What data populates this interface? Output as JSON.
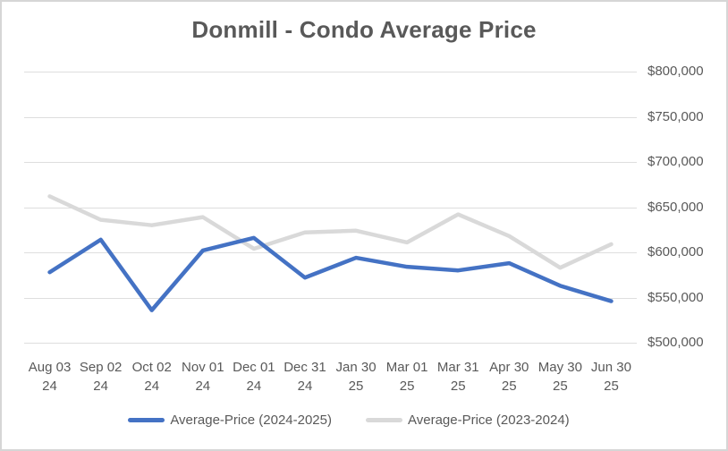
{
  "chart": {
    "background": "#FFFFFF",
    "border_color": "#D6D6D6",
    "text_color": "#595959",
    "gridline_color": "#DEDEDE"
  },
  "chart_data": {
    "type": "line",
    "title": "Donmill - Condo Average Price",
    "categories": [
      "Aug 03",
      "Sep 02",
      "Oct 02",
      "Nov 01",
      "Dec 01",
      "Dec 31",
      "Jan 30",
      "Mar 01",
      "Mar 31",
      "Apr 30",
      "May 30",
      "Jun 30"
    ],
    "category_years": [
      "24",
      "24",
      "24",
      "24",
      "24",
      "24",
      "25",
      "25",
      "25",
      "25",
      "25",
      "25"
    ],
    "series": [
      {
        "name": "Average-Price (2024-2025)",
        "color": "#4472C4",
        "values": [
          578000,
          614000,
          536000,
          602000,
          616000,
          572000,
          594000,
          584000,
          580000,
          588000,
          563000,
          546000
        ]
      },
      {
        "name": "Average-Price (2023-2024)",
        "color": "#D9D9D9",
        "values": [
          662000,
          636000,
          630000,
          639000,
          604000,
          622000,
          624000,
          611000,
          642000,
          618000,
          583000,
          609000
        ]
      }
    ],
    "y_axis": {
      "side": "right",
      "min": 500000,
      "max": 800000,
      "step": 50000,
      "tick_labels": [
        "$500,000",
        "$550,000",
        "$600,000",
        "$650,000",
        "$700,000",
        "$750,000",
        "$800,000"
      ]
    },
    "grid": true,
    "legend_position": "bottom"
  }
}
